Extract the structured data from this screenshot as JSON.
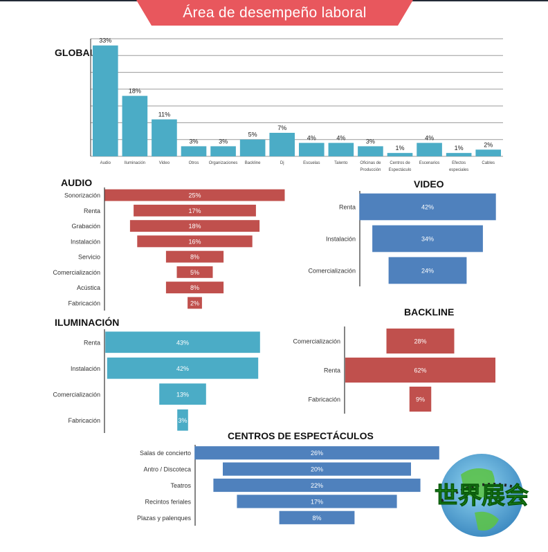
{
  "header": {
    "title": "Área de desempeño laboral",
    "banner_color": "#e8575d",
    "top_bar_color": "#222a36"
  },
  "colors": {
    "teal": "#4bacc6",
    "red": "#c0504d",
    "blue": "#4f81bd",
    "grid": "#9a9a9a",
    "axis": "#333333"
  },
  "chart_data": [
    {
      "id": "global",
      "type": "bar",
      "title": "GLOBAL",
      "categories": [
        "Audio",
        "Iluminación",
        "Video",
        "Otros",
        "Organizaciones",
        "Backline",
        "Dj",
        "Escuelas",
        "Talento",
        "Oficinas de Producción",
        "Centros de Espectáculo",
        "Escenarios",
        "Efectos especiales",
        "Cables"
      ],
      "values": [
        33,
        18,
        11,
        3,
        3,
        5,
        7,
        4,
        4,
        3,
        1,
        4,
        1,
        2
      ],
      "value_labels": [
        "33%",
        "18%",
        "11%",
        "3%",
        "3%",
        "5%",
        "7%",
        "4%",
        "4%",
        "3%",
        "1%",
        "4%",
        "1%",
        "2%"
      ],
      "category_label_lines": [
        [
          "Audio"
        ],
        [
          "Iluminación"
        ],
        [
          "Video"
        ],
        [
          "Otros"
        ],
        [
          "Organizaciones"
        ],
        [
          "Backline"
        ],
        [
          "Dj"
        ],
        [
          "Escuelas"
        ],
        [
          "Talento"
        ],
        [
          "Oficinas de",
          "Producción"
        ],
        [
          "Centros de",
          "Espectáculo"
        ],
        [
          "Escenarios"
        ],
        [
          "Efectos",
          "especiales"
        ],
        [
          "Cables"
        ]
      ],
      "ylim": [
        0,
        35
      ],
      "grid": true,
      "color": "#4bacc6"
    },
    {
      "id": "audio",
      "type": "bar",
      "orientation": "horizontal-centered",
      "title": "AUDIO",
      "categories": [
        "Sonorización",
        "Renta",
        "Grabación",
        "Instalación",
        "Servicio",
        "Comercialización",
        "Acústica",
        "Fabricación"
      ],
      "values": [
        25,
        17,
        18,
        16,
        8,
        5,
        8,
        2
      ],
      "value_labels": [
        "25%",
        "17%",
        "18%",
        "16%",
        "8%",
        "5%",
        "8%",
        "2%"
      ],
      "color": "#c0504d"
    },
    {
      "id": "video",
      "type": "bar",
      "orientation": "horizontal-centered",
      "title": "VIDEO",
      "categories": [
        "Renta",
        "Instalación",
        "Comercialización"
      ],
      "values": [
        42,
        34,
        24
      ],
      "value_labels": [
        "42%",
        "34%",
        "24%"
      ],
      "color": "#4f81bd"
    },
    {
      "id": "iluminacion",
      "type": "bar",
      "orientation": "horizontal-centered",
      "title": "ILUMINACIÓN",
      "categories": [
        "Renta",
        "Instalación",
        "Comercialización",
        "Fabricación"
      ],
      "values": [
        43,
        42,
        13,
        3
      ],
      "value_labels": [
        "43%",
        "42%",
        "13%",
        "3%"
      ],
      "color": "#4bacc6"
    },
    {
      "id": "backline",
      "type": "bar",
      "orientation": "horizontal-centered",
      "title": "BACKLINE",
      "categories": [
        "Comercialización",
        "Renta",
        "Fabricación"
      ],
      "values": [
        28,
        62,
        9
      ],
      "value_labels": [
        "28%",
        "62%",
        "9%"
      ],
      "color": "#c0504d"
    },
    {
      "id": "centros",
      "type": "bar",
      "orientation": "horizontal-centered",
      "title": "CENTROS DE ESPECTÁCULOS",
      "categories": [
        "Salas de concierto",
        "Antro / Discoteca",
        "Teatros",
        "Recintos feriales",
        "Plazas y palenques"
      ],
      "values": [
        26,
        20,
        22,
        17,
        8
      ],
      "value_labels": [
        "26%",
        "20%",
        "22%",
        "17%",
        "8%"
      ],
      "color": "#4f81bd"
    }
  ],
  "watermark": {
    "text": "世界展会"
  }
}
